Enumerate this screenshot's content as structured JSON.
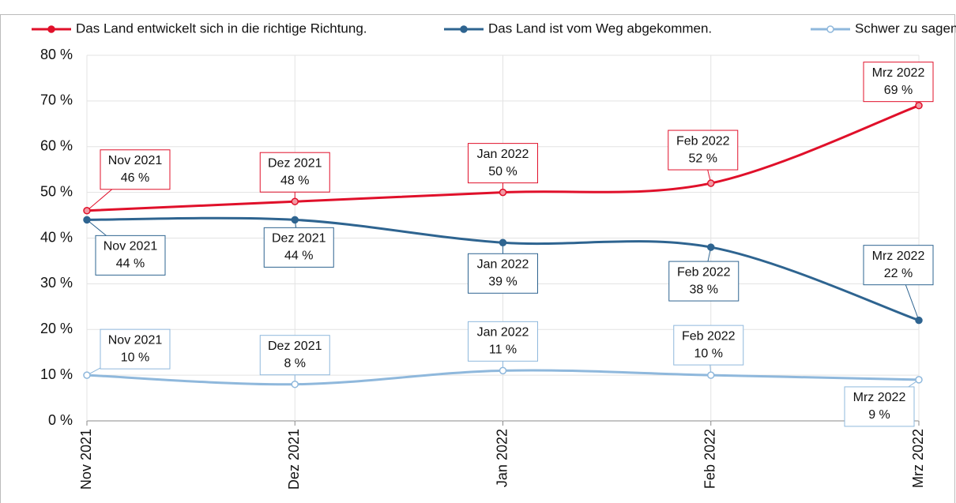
{
  "chart_data": {
    "type": "line",
    "categories": [
      "Nov 2021",
      "Dez 2021",
      "Jan 2022",
      "Feb 2022",
      "Mrz 2022"
    ],
    "series": [
      {
        "name": "Das Land entwickelt sich in die richtige Richtung.",
        "color": "#e0102a",
        "values": [
          46,
          48,
          50,
          52,
          69
        ],
        "value_labels": [
          "46 %",
          "48 %",
          "50 %",
          "52 %",
          "69 %"
        ]
      },
      {
        "name": "Das Land ist vom Weg abgekommen.",
        "color": "#2e6490",
        "values": [
          44,
          44,
          39,
          38,
          22
        ],
        "value_labels": [
          "44 %",
          "44 %",
          "39 %",
          "38 %",
          "22 %"
        ]
      },
      {
        "name": "Schwer zu sagen.",
        "color": "#8fb8dc",
        "values": [
          10,
          8,
          11,
          10,
          9
        ],
        "value_labels": [
          "10 %",
          "8 %",
          "11 %",
          "10 %",
          "9 %"
        ]
      }
    ],
    "ylim": [
      0,
      80
    ],
    "yticks": [
      {
        "value": 0,
        "label": "0 %"
      },
      {
        "value": 10,
        "label": "10 %"
      },
      {
        "value": 20,
        "label": "20 %"
      },
      {
        "value": 30,
        "label": "30 %"
      },
      {
        "value": 40,
        "label": "40 %"
      },
      {
        "value": 50,
        "label": "50 %"
      },
      {
        "value": 60,
        "label": "60 %"
      },
      {
        "value": 70,
        "label": "70 %"
      },
      {
        "value": 80,
        "label": "80 %"
      }
    ],
    "grid": true,
    "legend": "top"
  }
}
